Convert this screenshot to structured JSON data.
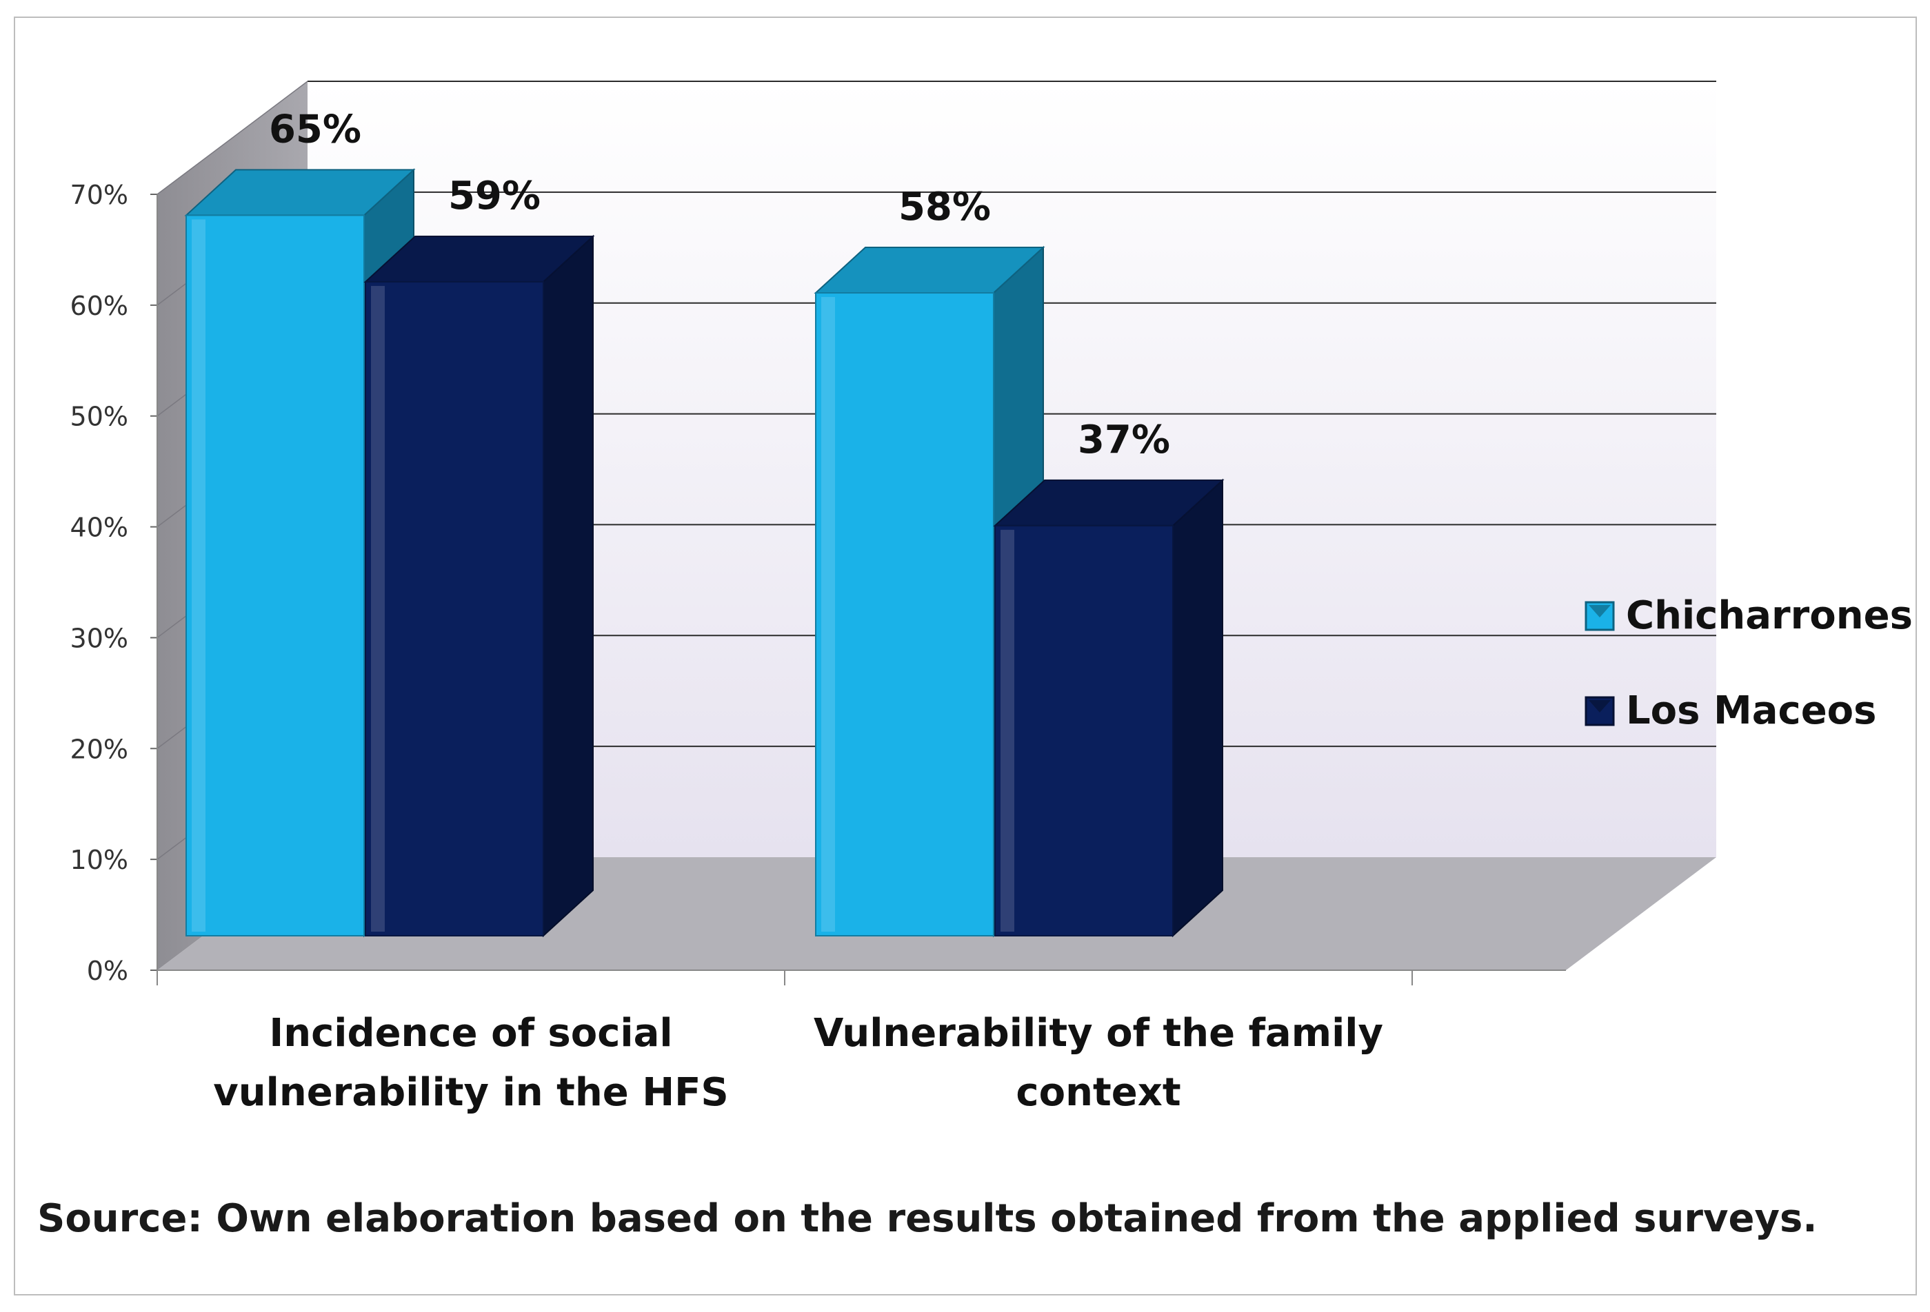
{
  "chart_data": {
    "type": "bar",
    "title": "",
    "categories": [
      [
        "Incidence of social",
        "vulnerability in the HFS"
      ],
      [
        "Vulnerability of the family",
        "context"
      ]
    ],
    "series": [
      {
        "name": "Chicharrones",
        "values": [
          65,
          58
        ],
        "labels": [
          "65%",
          "58%"
        ],
        "color": "#1ab2e8"
      },
      {
        "name": "Los Maceos",
        "values": [
          59,
          37
        ],
        "labels": [
          "59%",
          "37%"
        ],
        "color": "#0a1f5c"
      }
    ],
    "yticks": [
      "0%",
      "10%",
      "20%",
      "30%",
      "40%",
      "50%",
      "60%",
      "70%"
    ],
    "ylim": [
      0,
      70
    ],
    "ylabel": "",
    "xlabel": "",
    "legend": {
      "position": "right",
      "entries": [
        "Chicharrones",
        "Los Maceos"
      ]
    },
    "grid": true
  },
  "source_note": "Source: Own elaboration based on the results obtained from the applied surveys."
}
